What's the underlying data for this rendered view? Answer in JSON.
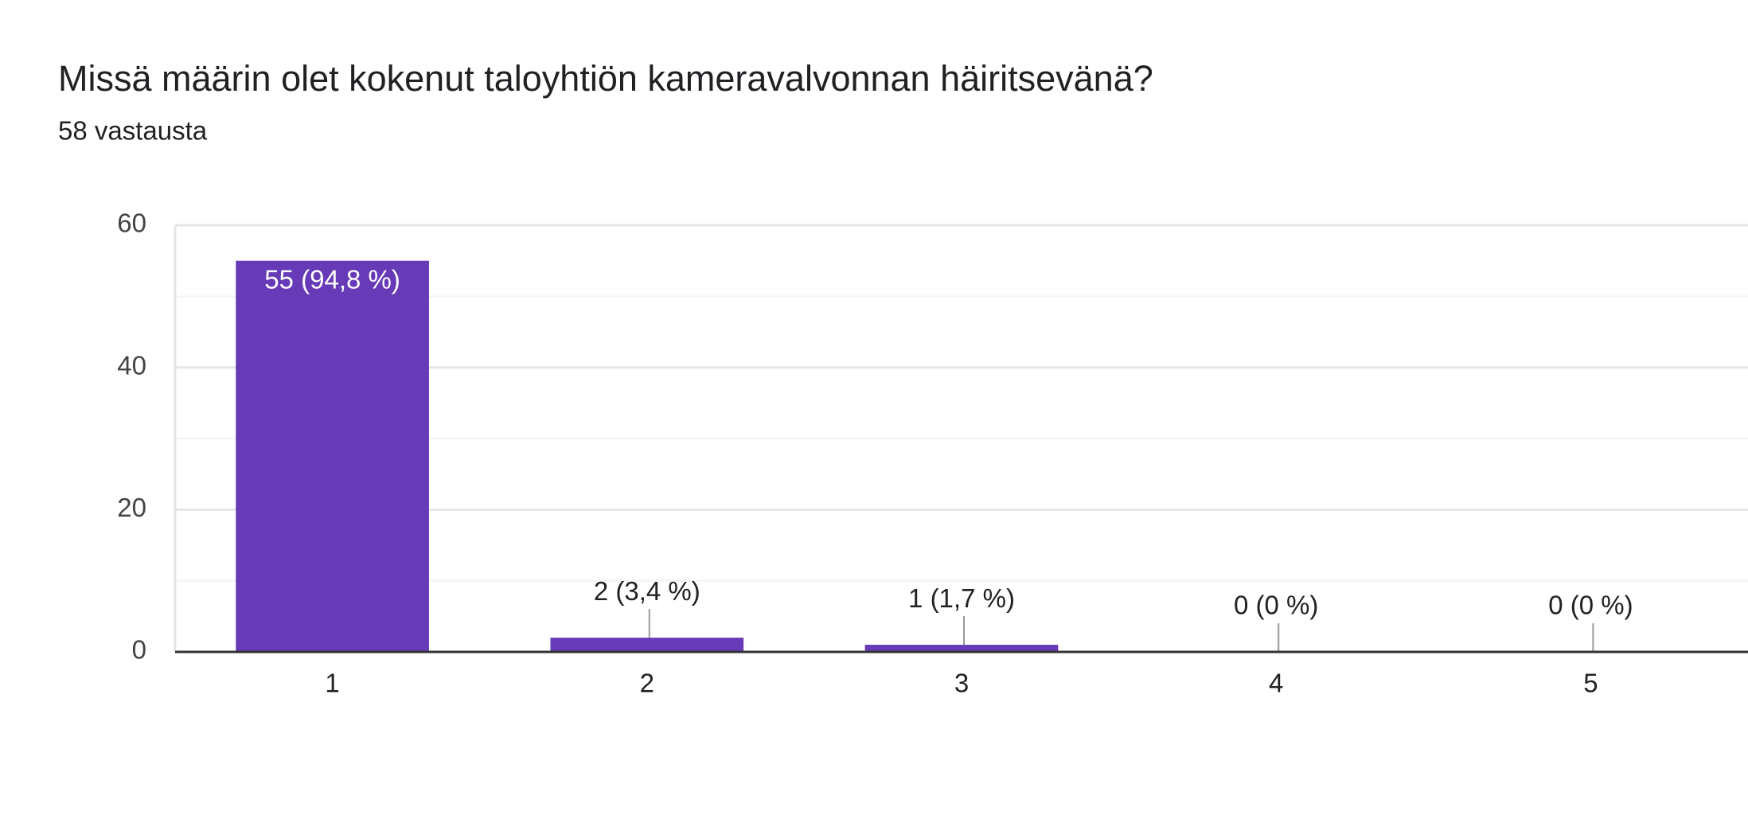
{
  "chart_data": {
    "type": "bar",
    "title": "Missä määrin olet kokenut taloyhtiön kameravalvonnan häiritsevänä?",
    "subtitle": "58 vastausta",
    "categories": [
      "1",
      "2",
      "3",
      "4",
      "5"
    ],
    "values": [
      55,
      2,
      1,
      0,
      0
    ],
    "value_labels": [
      "55 (94,8 %)",
      "2 (3,4 %)",
      "1 (1,7 %)",
      "0 (0 %)",
      "0 (0 %)"
    ],
    "color": "#673ab7",
    "ylim": [
      0,
      60
    ],
    "yticks": [
      0,
      20,
      40,
      60
    ],
    "grid": true
  }
}
